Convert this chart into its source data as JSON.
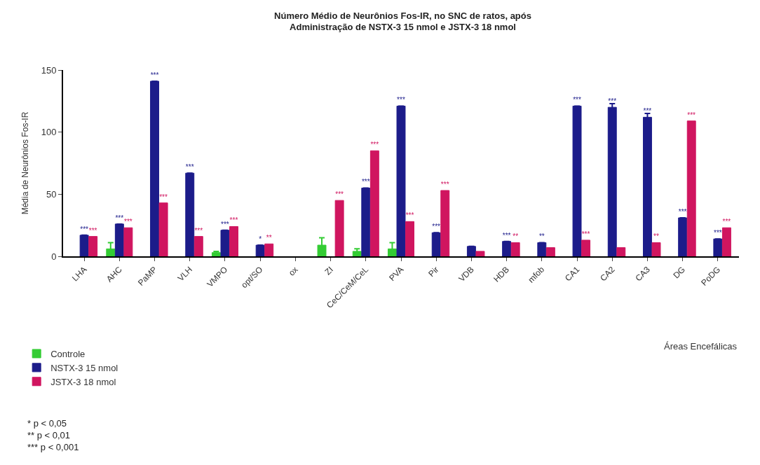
{
  "chart_data": {
    "type": "bar",
    "title": "Número Médio de Neurônios Fos-IR, no SNC de ratos, após\nAdministração de NSTX-3 15 nmol e JSTX-3 18 nmol",
    "xlabel": "Áreas Encefálicas",
    "ylabel": "Média de Neurônios Fos-IR",
    "categories": [
      "LHA",
      "AHC",
      "PaMP",
      "VLH",
      "VMPO",
      "opt/SO",
      "ox",
      "ZI",
      "CeC/CeM/CeL",
      "PVA",
      "Pir",
      "VDB",
      "HDB",
      "mfob",
      "CA1",
      "CA2",
      "CA3",
      "DG",
      "PoDG"
    ],
    "series": [
      {
        "name": "Controle",
        "color": "#33cc33",
        "values": [
          null,
          6,
          null,
          null,
          3,
          null,
          null,
          9,
          4,
          6,
          null,
          null,
          null,
          null,
          null,
          null,
          null,
          null,
          null
        ],
        "errors": [
          null,
          5,
          null,
          null,
          1,
          null,
          null,
          6,
          2,
          5,
          null,
          null,
          null,
          null,
          null,
          null,
          null,
          null,
          null
        ]
      },
      {
        "name": "NSTX-3 15 nmol",
        "color": "#1c1c8a",
        "values": [
          17,
          26,
          141,
          67,
          21,
          9,
          null,
          null,
          55,
          121,
          19,
          8,
          12,
          11,
          121,
          120,
          112,
          31,
          14
        ],
        "errors": [
          null,
          null,
          null,
          null,
          null,
          null,
          null,
          null,
          null,
          null,
          null,
          null,
          null,
          null,
          null,
          3,
          3,
          null,
          null
        ],
        "value_labels": [
          "***",
          "***",
          "***",
          "***",
          "***",
          "*",
          null,
          null,
          "***",
          "***",
          "***",
          null,
          "***",
          "**",
          "***",
          "***",
          "***",
          "***",
          "***"
        ]
      },
      {
        "name": "JSTX-3 18 nmol",
        "color": "#d0155f",
        "values": [
          16,
          23,
          43,
          16,
          24,
          10,
          null,
          45,
          85,
          28,
          53,
          4,
          11,
          7,
          13,
          7,
          11,
          109,
          23
        ],
        "value_labels": [
          "***",
          "***",
          "***",
          "***",
          "***",
          "**",
          null,
          "***",
          "***",
          "***",
          "***",
          null,
          "**",
          null,
          "***",
          null,
          "**",
          "***",
          "***"
        ]
      }
    ],
    "ylim": [
      0,
      150
    ],
    "yticks": [
      0,
      50,
      100,
      150
    ],
    "legend": "bottom left",
    "annotations": [
      "* p < 0,05\n** p < 0,01\n*** p < 0,001"
    ]
  }
}
